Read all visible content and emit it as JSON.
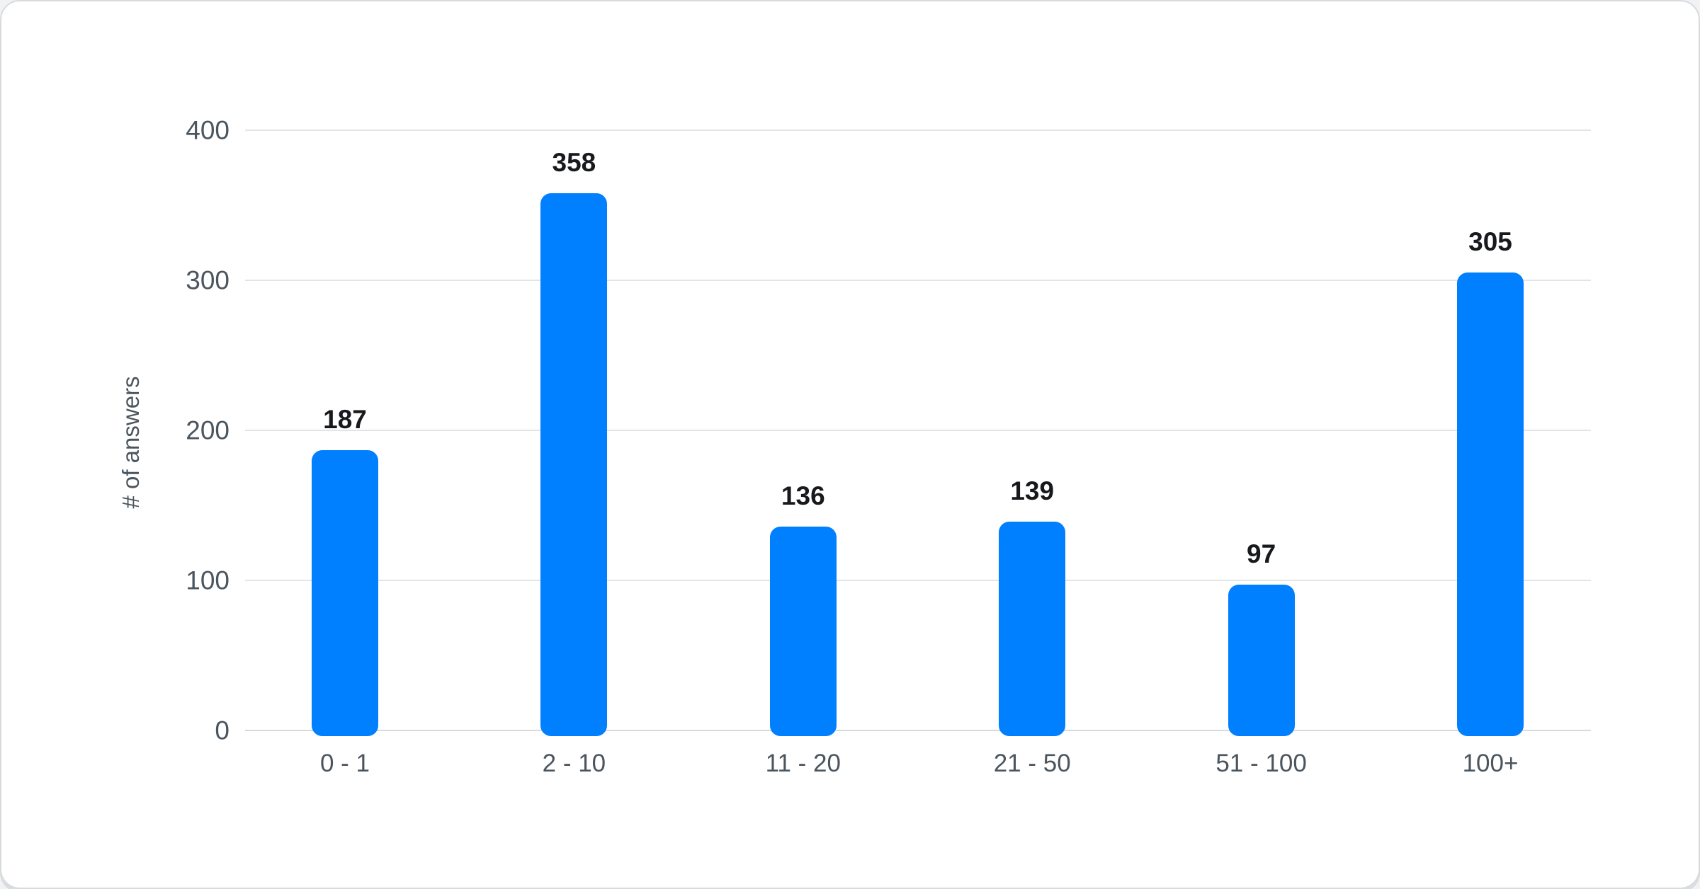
{
  "chart_data": {
    "type": "bar",
    "categories": [
      "0 - 1",
      "2 - 10",
      "11 - 20",
      "21 - 50",
      "51 - 100",
      "100+"
    ],
    "values": [
      187,
      358,
      136,
      139,
      97,
      305
    ],
    "ylabel": "# of answers",
    "yticks": [
      0,
      100,
      200,
      300,
      400
    ],
    "ylim": [
      0,
      400
    ],
    "grid": "horizontal",
    "legend": "none",
    "bar_color": "#0080ff",
    "gridline_color": "#e2e4e8",
    "axis_line_color": "#d6d9dd",
    "tick_label_color": "#4b555e",
    "value_label_color": "#17191c",
    "card_background": "#ffffff",
    "page_background": "#f1f2f4"
  }
}
